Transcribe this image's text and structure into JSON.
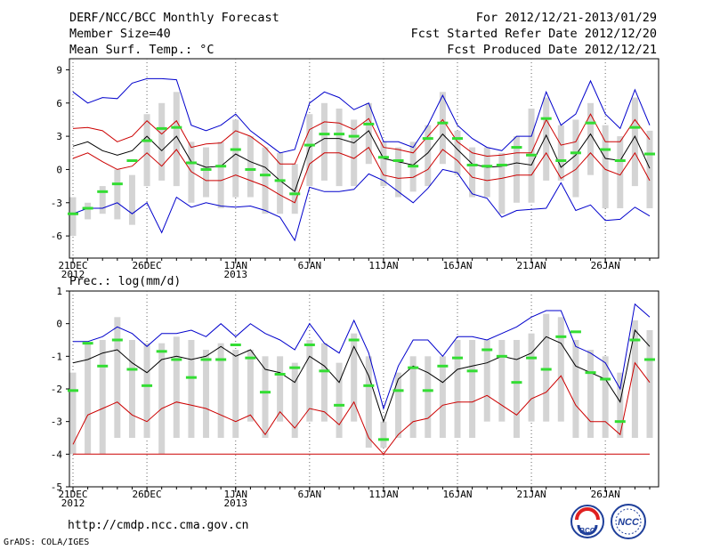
{
  "header": {
    "line1_left": "DERF/NCC/BCC Monthly Forecast",
    "line2_left": "Member Size=40",
    "line3_left": "Mean Surf. Temp.: °C",
    "line1_right": "For 2012/12/21-2013/01/29",
    "line2_right": "Fcst Started Refer Date 2012/12/20",
    "line3_right": "Fcst Produced Date 2012/12/21"
  },
  "footer": {
    "url": "http://cmdp.ncc.cma.gov.cn",
    "credit": "GrADS: COLA/IGES",
    "logo1_text": "BCC",
    "logo2_text": "NCC"
  },
  "colors": {
    "box": "#d4d4d4",
    "mean": "#000000",
    "spread_outer": "#0000cc",
    "spread_inner": "#cc0000",
    "obs": "#33dd33"
  },
  "chart_data": [
    {
      "type": "line",
      "title": "Mean Surf. Temp.: °C",
      "ylim": [
        -8,
        10
      ],
      "yticks": [
        -6,
        -3,
        0,
        3,
        6,
        9
      ],
      "xticks": [
        {
          "day": 0,
          "label": "21DEC",
          "sub": "2012"
        },
        {
          "day": 5,
          "label": "26DEC",
          "sub": ""
        },
        {
          "day": 11,
          "label": "1JAN",
          "sub": "2013"
        },
        {
          "day": 16,
          "label": "6JAN",
          "sub": ""
        },
        {
          "day": 21,
          "label": "11JAN",
          "sub": ""
        },
        {
          "day": 26,
          "label": "16JAN",
          "sub": ""
        },
        {
          "day": 31,
          "label": "21JAN",
          "sub": ""
        },
        {
          "day": 36,
          "label": "26JAN",
          "sub": ""
        }
      ],
      "series": [
        {
          "name": "max",
          "values": [
            7.0,
            6.0,
            6.5,
            6.4,
            7.8,
            8.2,
            8.2,
            8.1,
            4.0,
            3.5,
            4.0,
            5.0,
            3.5,
            2.5,
            1.5,
            1.8,
            6.0,
            7.0,
            6.5,
            5.4,
            6.0,
            2.5,
            2.5,
            2.0,
            4.0,
            6.7,
            4.0,
            2.8,
            2.0,
            1.7,
            3.0,
            3.0,
            7.0,
            4.0,
            5.0,
            8.0,
            5.0,
            3.7,
            7.2,
            4.0
          ]
        },
        {
          "name": "upper",
          "values": [
            3.7,
            3.8,
            3.5,
            2.5,
            3.0,
            4.4,
            3.2,
            4.4,
            2.0,
            2.3,
            2.4,
            3.5,
            3.0,
            2.0,
            0.5,
            0.5,
            3.6,
            4.3,
            4.2,
            3.6,
            4.6,
            2.0,
            1.8,
            1.5,
            3.0,
            4.5,
            2.5,
            1.5,
            1.2,
            1.3,
            1.5,
            1.5,
            4.5,
            2.2,
            2.5,
            5.0,
            2.5,
            2.5,
            4.5,
            2.7
          ]
        },
        {
          "name": "mean",
          "values": [
            2.1,
            2.5,
            1.7,
            1.3,
            1.7,
            3.0,
            1.7,
            3.0,
            0.7,
            0.2,
            0.3,
            1.4,
            0.7,
            0.2,
            -1.0,
            -2.0,
            2.0,
            2.8,
            2.8,
            2.4,
            3.5,
            1.0,
            0.7,
            0.4,
            1.5,
            3.2,
            1.8,
            0.5,
            0.2,
            0.3,
            0.6,
            0.4,
            3.1,
            0.2,
            1.3,
            3.2,
            1.0,
            0.8,
            3.0,
            0.1
          ]
        },
        {
          "name": "lower",
          "values": [
            1.0,
            1.5,
            0.7,
            0.0,
            0.3,
            1.5,
            0.3,
            1.8,
            -0.2,
            -1.0,
            -1.0,
            -0.5,
            -1.0,
            -1.5,
            -2.3,
            -3.0,
            0.5,
            1.5,
            1.5,
            1.0,
            2.0,
            -0.5,
            -0.8,
            -0.7,
            0.0,
            1.8,
            0.8,
            -0.7,
            -1.0,
            -0.8,
            -0.5,
            -0.5,
            1.5,
            -0.8,
            0.0,
            1.5,
            0.0,
            -0.5,
            1.5,
            -1.0
          ]
        },
        {
          "name": "min",
          "values": [
            -4.0,
            -3.5,
            -3.5,
            -3.0,
            -4.0,
            -3.0,
            -5.7,
            -2.5,
            -3.4,
            -3.0,
            -3.3,
            -3.4,
            -3.3,
            -3.7,
            -4.3,
            -6.4,
            -1.6,
            -2.0,
            -2.0,
            -1.8,
            -0.4,
            -1.0,
            -2.0,
            -3.0,
            -1.7,
            0.0,
            -0.3,
            -2.2,
            -2.6,
            -4.3,
            -3.7,
            -3.6,
            -3.5,
            -1.2,
            -3.7,
            -3.2,
            -4.6,
            -4.5,
            -3.4,
            -4.2
          ]
        },
        {
          "name": "box_low",
          "values": [
            -6.0,
            -4.5,
            -4.0,
            -4.5,
            -5.0,
            -1.5,
            -1.0,
            -1.5,
            -3.0,
            -2.5,
            -3.5,
            -2.5,
            -2.5,
            -4.0,
            -4.0,
            -4.0,
            -1.5,
            -1.0,
            -1.5,
            -1.5,
            0.5,
            -1.5,
            -2.5,
            -2.0,
            -1.5,
            0.5,
            -0.5,
            -2.5,
            -2.5,
            -4.0,
            -3.0,
            -3.0,
            -1.0,
            -1.0,
            -2.5,
            -0.5,
            -3.5,
            -3.5,
            -1.5,
            -3.5
          ]
        },
        {
          "name": "box_high",
          "values": [
            -2.5,
            -3.0,
            -1.5,
            0.0,
            -0.5,
            5.0,
            6.0,
            7.0,
            2.5,
            2.0,
            2.5,
            4.5,
            3.0,
            2.0,
            1.5,
            0.5,
            5.0,
            6.0,
            5.5,
            4.5,
            6.0,
            2.5,
            2.0,
            2.5,
            4.0,
            7.0,
            3.5,
            2.0,
            2.0,
            1.5,
            3.0,
            5.5,
            6.5,
            4.0,
            4.5,
            6.0,
            4.0,
            3.0,
            6.5,
            3.5
          ]
        },
        {
          "name": "observed",
          "values": [
            -4.0,
            -3.5,
            -2.0,
            -1.3,
            0.8,
            2.6,
            3.7,
            3.8,
            0.6,
            0.0,
            0.3,
            1.8,
            0.0,
            -0.5,
            -1.0,
            -2.2,
            2.2,
            3.2,
            3.2,
            3.0,
            4.1,
            1.1,
            0.8,
            0.3,
            2.8,
            4.2,
            2.8,
            0.4,
            0.3,
            0.4,
            2.0,
            1.3,
            4.6,
            0.8,
            1.5,
            4.2,
            1.8,
            0.8,
            3.8,
            1.4
          ]
        }
      ]
    },
    {
      "type": "line",
      "title": "Prec.: log(mm/d)",
      "ylim": [
        -5,
        1
      ],
      "yticks": [
        -5,
        -4,
        -3,
        -2,
        -1,
        0,
        1
      ],
      "xticks": [
        {
          "day": 0,
          "label": "21DEC",
          "sub": "2012"
        },
        {
          "day": 5,
          "label": "26DEC",
          "sub": ""
        },
        {
          "day": 11,
          "label": "1JAN",
          "sub": "2013"
        },
        {
          "day": 16,
          "label": "6JAN",
          "sub": ""
        },
        {
          "day": 21,
          "label": "11JAN",
          "sub": ""
        },
        {
          "day": 26,
          "label": "16JAN",
          "sub": ""
        },
        {
          "day": 31,
          "label": "21JAN",
          "sub": ""
        },
        {
          "day": 36,
          "label": "26JAN",
          "sub": ""
        }
      ],
      "series": [
        {
          "name": "max",
          "values": [
            -0.55,
            -0.55,
            -0.4,
            -0.1,
            -0.3,
            -0.7,
            -0.3,
            -0.3,
            -0.2,
            -0.4,
            0.0,
            -0.4,
            0.0,
            -0.3,
            -0.5,
            -0.8,
            0.0,
            -0.6,
            -0.9,
            0.1,
            -0.9,
            -2.6,
            -1.3,
            -0.5,
            -0.5,
            -1.0,
            -0.4,
            -0.4,
            -0.5,
            -0.3,
            -0.1,
            0.2,
            0.4,
            0.4,
            -0.7,
            -0.9,
            -1.2,
            -2.0,
            0.6,
            0.2
          ]
        },
        {
          "name": "mean",
          "values": [
            -1.2,
            -1.1,
            -0.9,
            -0.8,
            -1.2,
            -1.5,
            -1.1,
            -1.0,
            -1.1,
            -1.0,
            -0.7,
            -1.0,
            -0.8,
            -1.4,
            -1.5,
            -1.8,
            -1.0,
            -1.3,
            -1.8,
            -0.7,
            -1.6,
            -3.0,
            -1.7,
            -1.3,
            -1.5,
            -1.8,
            -1.4,
            -1.3,
            -1.2,
            -1.0,
            -1.1,
            -0.9,
            -0.4,
            -0.6,
            -1.3,
            -1.5,
            -1.7,
            -2.4,
            -0.2,
            -0.7
          ]
        },
        {
          "name": "lower",
          "values": [
            -3.7,
            -2.8,
            -2.6,
            -2.4,
            -2.8,
            -3.0,
            -2.6,
            -2.4,
            -2.5,
            -2.6,
            -2.8,
            -3.0,
            -2.8,
            -3.4,
            -2.7,
            -3.2,
            -2.6,
            -2.7,
            -3.1,
            -2.4,
            -3.5,
            -4.0,
            -3.4,
            -3.0,
            -2.9,
            -2.5,
            -2.4,
            -2.4,
            -2.2,
            -2.5,
            -2.8,
            -2.3,
            -2.1,
            -1.6,
            -2.5,
            -3.0,
            -3.0,
            -3.4,
            -1.2,
            -1.8
          ]
        },
        {
          "name": "min",
          "values": [
            -4.0,
            -4.0,
            -4.0,
            -4.0,
            -4.0,
            -4.0,
            -4.0,
            -4.0,
            -4.0,
            -4.0,
            -4.0,
            -4.0,
            -4.0,
            -4.0,
            -4.0,
            -4.0,
            -4.0,
            -4.0,
            -4.0,
            -4.0,
            -4.0,
            -4.0,
            -4.0,
            -4.0,
            -4.0,
            -4.0,
            -4.0,
            -4.0,
            -4.0,
            -4.0,
            -4.0,
            -4.0,
            -4.0,
            -4.0,
            -4.0,
            -4.0,
            -4.0,
            -4.0,
            -4.0,
            -4.0
          ]
        },
        {
          "name": "box_low",
          "values": [
            -4.0,
            -4.0,
            -4.0,
            -3.5,
            -3.5,
            -3.5,
            -4.0,
            -3.5,
            -3.5,
            -3.5,
            -3.5,
            -3.5,
            -3.0,
            -3.5,
            -3.0,
            -3.5,
            -3.0,
            -3.0,
            -3.5,
            -3.0,
            -3.8,
            -3.8,
            -3.5,
            -3.5,
            -3.5,
            -3.5,
            -3.5,
            -3.5,
            -3.0,
            -3.0,
            -3.5,
            -3.0,
            -3.0,
            -3.0,
            -3.5,
            -3.5,
            -3.5,
            -3.5,
            -3.5,
            -3.5
          ]
        },
        {
          "name": "box_high",
          "values": [
            -1.5,
            -0.6,
            -0.5,
            0.2,
            -0.5,
            -0.6,
            -0.6,
            -0.4,
            -0.5,
            -0.8,
            -0.6,
            -0.8,
            -0.8,
            -1.0,
            -1.0,
            -1.2,
            -0.5,
            -0.6,
            -1.2,
            -0.3,
            -1.0,
            -3.0,
            -1.5,
            -1.0,
            -1.0,
            -1.0,
            -0.5,
            -0.5,
            -0.5,
            -0.5,
            -0.5,
            -0.3,
            0.3,
            0.2,
            -0.5,
            -0.8,
            -1.0,
            -1.5,
            0.1,
            -0.2
          ]
        },
        {
          "name": "observed",
          "values": [
            -2.05,
            -0.6,
            -1.3,
            -0.5,
            -1.4,
            -1.9,
            -0.85,
            -1.1,
            -1.65,
            -1.1,
            -1.1,
            -0.65,
            -1.05,
            -2.1,
            -1.55,
            -1.35,
            -0.65,
            -1.45,
            -2.5,
            -0.5,
            -1.9,
            -3.55,
            -2.05,
            -1.35,
            -2.05,
            -1.3,
            -1.05,
            -1.45,
            -0.8,
            -1.0,
            -1.8,
            -1.05,
            -1.4,
            -0.4,
            -0.25,
            -1.5,
            -1.7,
            -3.0,
            -0.5,
            -1.1
          ]
        }
      ]
    }
  ]
}
